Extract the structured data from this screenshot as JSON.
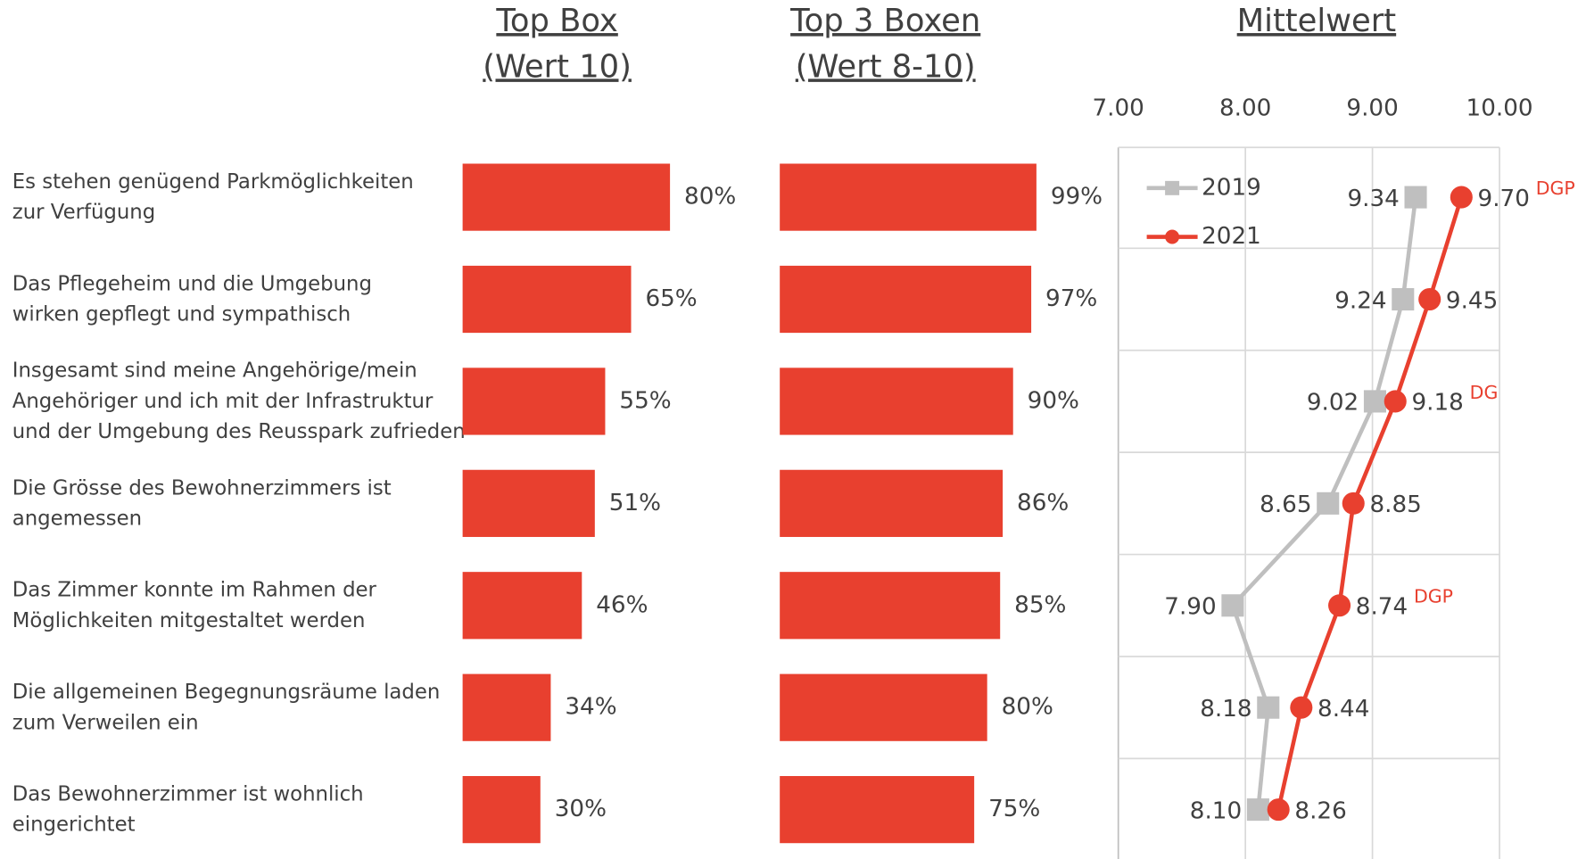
{
  "chart_data": [
    {
      "type": "bar",
      "title": [
        "Top Box",
        "(Wert 10)"
      ],
      "categories": [
        "Es stehen genügend Parkmöglichkeiten\nzur Verfügung",
        "Das Pflegeheim und die Umgebung\nwirken gepflegt und sympathisch",
        "Insgesamt sind meine Angehörige/mein\nAngehöriger und ich mit der Infrastruktur\nund der Umgebung des Reusspark zufrieden",
        "Die Grösse des Bewohnerzimmers ist\nangemessen",
        "Das Zimmer konnte im Rahmen der\nMöglichkeiten mitgestaltet werden",
        "Die allgemeinen Begegnungsräume laden\nzum Verweilen ein",
        "Das Bewohnerzimmer ist wohnlich\neingerichtet"
      ],
      "values": [
        80,
        65,
        55,
        51,
        46,
        34,
        30
      ],
      "value_labels": [
        "80%",
        "65%",
        "55%",
        "51%",
        "46%",
        "34%",
        "30%"
      ],
      "color": "#e8402f"
    },
    {
      "type": "bar",
      "title": [
        "Top 3 Boxen",
        "(Wert 8-10)"
      ],
      "values": [
        99,
        97,
        90,
        86,
        85,
        80,
        75
      ],
      "value_labels": [
        "99%",
        "97%",
        "90%",
        "86%",
        "85%",
        "80%",
        "75%"
      ],
      "color": "#e8402f"
    },
    {
      "type": "line",
      "title": "Mittelwert",
      "xlim": [
        7,
        10
      ],
      "xticks": [
        {
          "value": 7,
          "label": "7.00"
        },
        {
          "value": 8,
          "label": "8.00"
        },
        {
          "value": 9,
          "label": "9.00"
        },
        {
          "value": 10,
          "label": "10.00"
        }
      ],
      "grid": true,
      "legend": "upper left",
      "series": [
        {
          "name": "2019",
          "color": "#bfbfbf",
          "marker": "square",
          "values": [
            9.34,
            9.24,
            9.02,
            8.65,
            7.9,
            8.18,
            8.1
          ],
          "value_labels": [
            "9.34",
            "9.24",
            "9.02",
            "8.65",
            "7.90",
            "8.18",
            "8.10"
          ]
        },
        {
          "name": "2021",
          "color": "#e8402f",
          "marker": "circle",
          "values": [
            9.7,
            9.45,
            9.18,
            8.85,
            8.74,
            8.44,
            8.26
          ],
          "value_labels": [
            "9.70",
            "9.45",
            "9.18",
            "8.85",
            "8.74",
            "8.44",
            "8.26"
          ],
          "annotations": [
            "DGP",
            null,
            "DG",
            null,
            "DGP",
            null,
            null
          ]
        }
      ]
    }
  ]
}
